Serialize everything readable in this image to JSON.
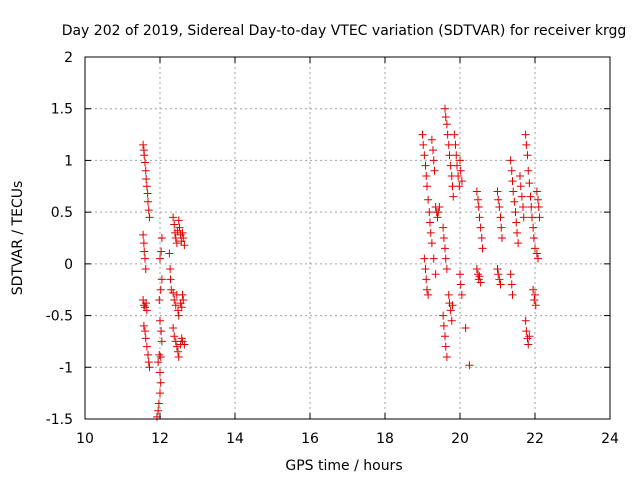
{
  "chart_data": {
    "type": "scatter",
    "title": "Day 202 of 2019, Sidereal Day-to-day VTEC variation (SDTVAR) for receiver krgg",
    "xlabel": "GPS time / hours",
    "ylabel": "SDTVAR / TECUs",
    "xlim": [
      10,
      24
    ],
    "ylim": [
      -1.5,
      2
    ],
    "grid": true,
    "marker": "+",
    "x_ticks": [
      10,
      12,
      14,
      16,
      18,
      20,
      22,
      24
    ],
    "x_tick_labels": [
      "10",
      "12",
      "14",
      "16",
      "18",
      "20",
      "22",
      "24"
    ],
    "y_ticks": [
      -1.5,
      -1,
      -0.5,
      0,
      0.5,
      1,
      1.5,
      2
    ],
    "y_tick_labels": [
      "-1.5",
      "-1",
      "-0.5",
      "0",
      "0.5",
      "1",
      "1.5",
      "2"
    ],
    "colors": {
      "points": "#e00000",
      "grid": "#a0a0a0",
      "frame": "#000000"
    },
    "series": [
      {
        "name": "SDTVAR",
        "points": [
          [
            11.55,
            1.15
          ],
          [
            11.57,
            1.1
          ],
          [
            11.58,
            1.05
          ],
          [
            11.6,
            0.98
          ],
          [
            11.62,
            0.9
          ],
          [
            11.63,
            0.82
          ],
          [
            11.65,
            0.75
          ],
          [
            11.67,
            0.68
          ],
          [
            11.68,
            0.6
          ],
          [
            11.7,
            0.52
          ],
          [
            11.72,
            0.45
          ],
          [
            11.55,
            0.28
          ],
          [
            11.57,
            0.2
          ],
          [
            11.58,
            0.12
          ],
          [
            11.6,
            0.05
          ],
          [
            11.62,
            -0.05
          ],
          [
            11.55,
            -0.35
          ],
          [
            11.57,
            -0.4
          ],
          [
            11.6,
            -0.42
          ],
          [
            11.63,
            -0.38
          ],
          [
            11.65,
            -0.45
          ],
          [
            11.57,
            -0.6
          ],
          [
            11.6,
            -0.65
          ],
          [
            11.62,
            -0.72
          ],
          [
            11.65,
            -0.8
          ],
          [
            11.68,
            -0.88
          ],
          [
            11.7,
            -0.95
          ],
          [
            11.72,
            -1.0
          ],
          [
            11.92,
            -1.48
          ],
          [
            11.95,
            -1.42
          ],
          [
            11.97,
            -1.35
          ],
          [
            12.0,
            -1.25
          ],
          [
            12.02,
            -1.15
          ],
          [
            12.0,
            -1.05
          ],
          [
            11.95,
            -0.95
          ],
          [
            11.98,
            -0.88
          ],
          [
            12.02,
            -0.9
          ],
          [
            12.05,
            -0.75
          ],
          [
            12.03,
            -0.65
          ],
          [
            12.0,
            -0.55
          ],
          [
            11.98,
            -0.35
          ],
          [
            12.02,
            -0.25
          ],
          [
            12.05,
            -0.15
          ],
          [
            12.0,
            0.05
          ],
          [
            12.03,
            0.12
          ],
          [
            12.05,
            0.25
          ],
          [
            12.25,
            0.1
          ],
          [
            12.27,
            -0.05
          ],
          [
            12.28,
            -0.15
          ],
          [
            12.3,
            -0.25
          ],
          [
            12.35,
            0.45
          ],
          [
            12.38,
            0.38
          ],
          [
            12.4,
            0.3
          ],
          [
            12.42,
            0.25
          ],
          [
            12.45,
            0.2
          ],
          [
            12.47,
            0.32
          ],
          [
            12.5,
            0.42
          ],
          [
            12.52,
            0.35
          ],
          [
            12.55,
            0.28
          ],
          [
            12.57,
            0.22
          ],
          [
            12.6,
            0.3
          ],
          [
            12.62,
            0.25
          ],
          [
            12.65,
            0.18
          ],
          [
            12.35,
            -0.28
          ],
          [
            12.38,
            -0.35
          ],
          [
            12.42,
            -0.4
          ],
          [
            12.45,
            -0.3
          ],
          [
            12.48,
            -0.45
          ],
          [
            12.5,
            -0.5
          ],
          [
            12.55,
            -0.38
          ],
          [
            12.58,
            -0.42
          ],
          [
            12.6,
            -0.3
          ],
          [
            12.62,
            -0.35
          ],
          [
            12.35,
            -0.62
          ],
          [
            12.38,
            -0.7
          ],
          [
            12.42,
            -0.75
          ],
          [
            12.45,
            -0.8
          ],
          [
            12.48,
            -0.85
          ],
          [
            12.5,
            -0.9
          ],
          [
            12.55,
            -0.78
          ],
          [
            12.58,
            -0.72
          ],
          [
            12.6,
            -0.75
          ],
          [
            12.65,
            -0.78
          ],
          [
            19.0,
            1.25
          ],
          [
            19.02,
            1.15
          ],
          [
            19.05,
            1.05
          ],
          [
            19.08,
            0.95
          ],
          [
            19.1,
            0.85
          ],
          [
            19.12,
            0.75
          ],
          [
            19.15,
            0.62
          ],
          [
            19.18,
            0.5
          ],
          [
            19.2,
            0.4
          ],
          [
            19.22,
            0.3
          ],
          [
            19.25,
            0.2
          ],
          [
            19.05,
            0.05
          ],
          [
            19.08,
            -0.05
          ],
          [
            19.1,
            -0.15
          ],
          [
            19.12,
            -0.25
          ],
          [
            19.15,
            -0.3
          ],
          [
            19.25,
            1.2
          ],
          [
            19.28,
            1.1
          ],
          [
            19.3,
            1.0
          ],
          [
            19.32,
            0.9
          ],
          [
            19.35,
            0.55
          ],
          [
            19.38,
            0.5
          ],
          [
            19.4,
            0.45
          ],
          [
            19.42,
            0.5
          ],
          [
            19.45,
            0.55
          ],
          [
            19.3,
            0.05
          ],
          [
            19.35,
            -0.1
          ],
          [
            19.55,
            0.35
          ],
          [
            19.57,
            0.25
          ],
          [
            19.6,
            0.15
          ],
          [
            19.62,
            0.05
          ],
          [
            19.65,
            -0.05
          ],
          [
            19.55,
            -0.5
          ],
          [
            19.57,
            -0.6
          ],
          [
            19.6,
            -0.7
          ],
          [
            19.62,
            -0.8
          ],
          [
            19.65,
            -0.9
          ],
          [
            19.6,
            1.5
          ],
          [
            19.62,
            1.42
          ],
          [
            19.65,
            1.35
          ],
          [
            19.67,
            1.25
          ],
          [
            19.7,
            1.15
          ],
          [
            19.72,
            1.05
          ],
          [
            19.75,
            0.95
          ],
          [
            19.78,
            0.85
          ],
          [
            19.8,
            0.75
          ],
          [
            19.82,
            0.65
          ],
          [
            19.7,
            -0.3
          ],
          [
            19.72,
            -0.38
          ],
          [
            19.75,
            -0.45
          ],
          [
            19.78,
            -0.55
          ],
          [
            19.8,
            -0.4
          ],
          [
            19.85,
            1.25
          ],
          [
            19.88,
            1.15
          ],
          [
            19.9,
            1.05
          ],
          [
            19.92,
            0.95
          ],
          [
            19.95,
            0.85
          ],
          [
            19.98,
            0.75
          ],
          [
            20.0,
            1.0
          ],
          [
            20.02,
            0.9
          ],
          [
            20.05,
            0.8
          ],
          [
            20.0,
            -0.1
          ],
          [
            20.02,
            -0.2
          ],
          [
            20.05,
            -0.3
          ],
          [
            20.15,
            -0.62
          ],
          [
            20.25,
            -0.98
          ],
          [
            20.45,
            0.7
          ],
          [
            20.48,
            0.62
          ],
          [
            20.5,
            0.55
          ],
          [
            20.52,
            0.45
          ],
          [
            20.55,
            0.35
          ],
          [
            20.58,
            0.25
          ],
          [
            20.6,
            0.15
          ],
          [
            20.45,
            -0.05
          ],
          [
            20.48,
            -0.1
          ],
          [
            20.5,
            -0.15
          ],
          [
            20.52,
            -0.12
          ],
          [
            20.55,
            -0.18
          ],
          [
            21.0,
            0.7
          ],
          [
            21.02,
            0.62
          ],
          [
            21.05,
            0.55
          ],
          [
            21.08,
            0.45
          ],
          [
            21.1,
            0.35
          ],
          [
            21.12,
            0.25
          ],
          [
            21.0,
            -0.05
          ],
          [
            21.02,
            -0.1
          ],
          [
            21.05,
            -0.15
          ],
          [
            21.08,
            -0.2
          ],
          [
            21.35,
            1.0
          ],
          [
            21.38,
            0.9
          ],
          [
            21.4,
            0.8
          ],
          [
            21.42,
            0.7
          ],
          [
            21.45,
            0.6
          ],
          [
            21.48,
            0.5
          ],
          [
            21.5,
            0.4
          ],
          [
            21.52,
            0.3
          ],
          [
            21.55,
            0.2
          ],
          [
            21.35,
            -0.1
          ],
          [
            21.38,
            -0.2
          ],
          [
            21.4,
            -0.3
          ],
          [
            21.6,
            0.85
          ],
          [
            21.62,
            0.75
          ],
          [
            21.65,
            0.65
          ],
          [
            21.68,
            0.55
          ],
          [
            21.7,
            0.45
          ],
          [
            21.75,
            1.25
          ],
          [
            21.77,
            1.15
          ],
          [
            21.8,
            1.05
          ],
          [
            21.82,
            0.9
          ],
          [
            21.85,
            0.78
          ],
          [
            21.88,
            0.65
          ],
          [
            21.9,
            0.55
          ],
          [
            21.92,
            0.45
          ],
          [
            21.95,
            0.35
          ],
          [
            21.97,
            0.25
          ],
          [
            22.0,
            0.15
          ],
          [
            21.75,
            -0.55
          ],
          [
            21.77,
            -0.65
          ],
          [
            21.8,
            -0.72
          ],
          [
            21.82,
            -0.78
          ],
          [
            21.85,
            -0.7
          ],
          [
            21.95,
            -0.25
          ],
          [
            21.98,
            -0.35
          ],
          [
            22.0,
            -0.3
          ],
          [
            22.02,
            -0.4
          ],
          [
            22.05,
            0.7
          ],
          [
            22.08,
            0.62
          ],
          [
            22.1,
            0.55
          ],
          [
            22.12,
            0.45
          ],
          [
            22.05,
            0.1
          ],
          [
            22.08,
            0.05
          ]
        ]
      }
    ]
  }
}
